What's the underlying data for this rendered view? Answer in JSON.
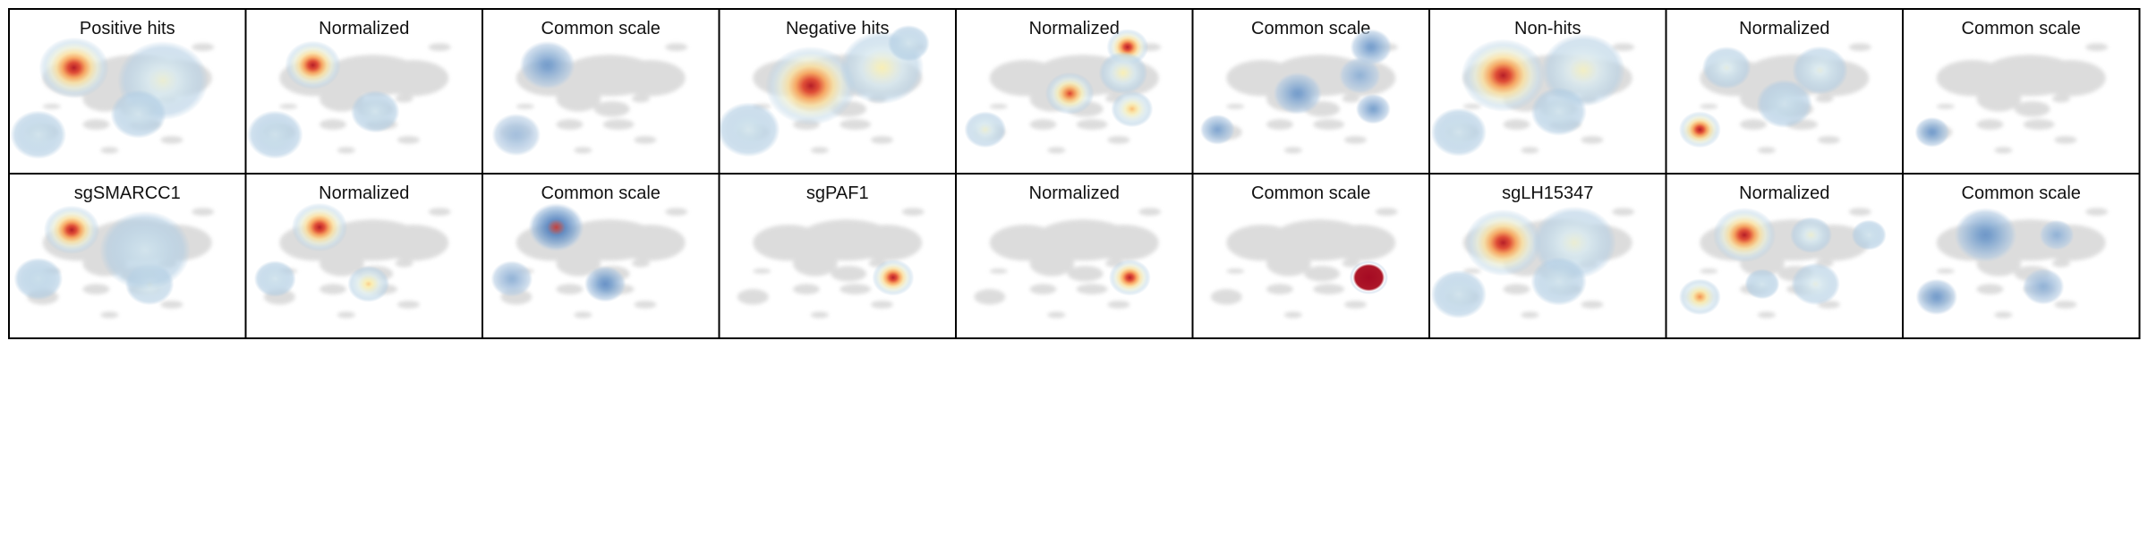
{
  "figure": {
    "rows": [
      [
        "Positive hits",
        "Normalized",
        "Common scale",
        "Negative hits",
        "Normalized",
        "Common scale",
        "Non-hits",
        "Normalized",
        "Common scale"
      ],
      [
        "sgSMARCC1",
        "Normalized",
        "Common scale",
        "sgPAF1",
        "Normalized",
        "Common scale",
        "sgLH15347",
        "Normalized",
        "Common scale"
      ]
    ]
  },
  "chart_data": {
    "type": "heatmap",
    "description_kind": "density overlays on shared embedding",
    "colormap_normalized": "RdYlBu_r",
    "colormap_common": "Blues-to-Reds",
    "background_color": "#d9d9d9",
    "panels": [
      {
        "title": "Positive hits",
        "row": 0,
        "col": 0,
        "hotspots": [
          {
            "x": 0.26,
            "y": 0.22,
            "intensity": 1.0,
            "spread": 1.0
          },
          {
            "x": 0.66,
            "y": 0.32,
            "intensity": 0.35,
            "spread": 1.3
          },
          {
            "x": 0.1,
            "y": 0.74,
            "intensity": 0.2,
            "spread": 0.8
          },
          {
            "x": 0.55,
            "y": 0.58,
            "intensity": 0.2,
            "spread": 0.8
          }
        ]
      },
      {
        "title": "Normalized",
        "row": 0,
        "col": 1,
        "hotspots": [
          {
            "x": 0.27,
            "y": 0.2,
            "intensity": 1.0,
            "spread": 0.8
          },
          {
            "x": 0.1,
            "y": 0.74,
            "intensity": 0.18,
            "spread": 0.8
          },
          {
            "x": 0.55,
            "y": 0.56,
            "intensity": 0.2,
            "spread": 0.7
          }
        ]
      },
      {
        "title": "Common scale",
        "row": 0,
        "col": 2,
        "hotspots": [
          {
            "x": 0.26,
            "y": 0.2,
            "intensity": 0.35,
            "spread": 0.8
          },
          {
            "x": 0.12,
            "y": 0.74,
            "intensity": 0.12,
            "spread": 0.7
          }
        ]
      },
      {
        "title": "Negative hits",
        "row": 0,
        "col": 3,
        "hotspots": [
          {
            "x": 0.38,
            "y": 0.36,
            "intensity": 1.0,
            "spread": 1.3
          },
          {
            "x": 0.7,
            "y": 0.22,
            "intensity": 0.45,
            "spread": 1.2
          },
          {
            "x": 0.1,
            "y": 0.7,
            "intensity": 0.22,
            "spread": 0.9
          },
          {
            "x": 0.82,
            "y": 0.03,
            "intensity": 0.2,
            "spread": 0.6
          }
        ]
      },
      {
        "title": "Normalized",
        "row": 0,
        "col": 4,
        "hotspots": [
          {
            "x": 0.74,
            "y": 0.06,
            "intensity": 1.0,
            "spread": 0.6
          },
          {
            "x": 0.48,
            "y": 0.42,
            "intensity": 0.85,
            "spread": 0.7
          },
          {
            "x": 0.72,
            "y": 0.26,
            "intensity": 0.45,
            "spread": 0.7
          },
          {
            "x": 0.76,
            "y": 0.54,
            "intensity": 0.6,
            "spread": 0.6
          },
          {
            "x": 0.1,
            "y": 0.7,
            "intensity": 0.35,
            "spread": 0.6
          }
        ]
      },
      {
        "title": "Common scale",
        "row": 0,
        "col": 5,
        "hotspots": [
          {
            "x": 0.77,
            "y": 0.06,
            "intensity": 0.35,
            "spread": 0.6
          },
          {
            "x": 0.44,
            "y": 0.42,
            "intensity": 0.35,
            "spread": 0.7
          },
          {
            "x": 0.72,
            "y": 0.28,
            "intensity": 0.2,
            "spread": 0.6
          },
          {
            "x": 0.78,
            "y": 0.54,
            "intensity": 0.32,
            "spread": 0.5
          },
          {
            "x": 0.08,
            "y": 0.7,
            "intensity": 0.28,
            "spread": 0.5
          }
        ]
      },
      {
        "title": "Non-hits",
        "row": 0,
        "col": 6,
        "hotspots": [
          {
            "x": 0.3,
            "y": 0.28,
            "intensity": 1.0,
            "spread": 1.2
          },
          {
            "x": 0.66,
            "y": 0.24,
            "intensity": 0.4,
            "spread": 1.2
          },
          {
            "x": 0.1,
            "y": 0.72,
            "intensity": 0.2,
            "spread": 0.8
          },
          {
            "x": 0.55,
            "y": 0.56,
            "intensity": 0.2,
            "spread": 0.8
          }
        ]
      },
      {
        "title": "Normalized",
        "row": 0,
        "col": 7,
        "hotspots": [
          {
            "x": 0.12,
            "y": 0.7,
            "intensity": 1.0,
            "spread": 0.6
          },
          {
            "x": 0.24,
            "y": 0.22,
            "intensity": 0.3,
            "spread": 0.7
          },
          {
            "x": 0.66,
            "y": 0.24,
            "intensity": 0.3,
            "spread": 0.8
          },
          {
            "x": 0.5,
            "y": 0.5,
            "intensity": 0.18,
            "spread": 0.8
          }
        ]
      },
      {
        "title": "Common scale",
        "row": 0,
        "col": 8,
        "hotspots": [
          {
            "x": 0.1,
            "y": 0.72,
            "intensity": 0.35,
            "spread": 0.5
          }
        ]
      },
      {
        "title": "sgSMARCC1",
        "row": 1,
        "col": 0,
        "hotspots": [
          {
            "x": 0.25,
            "y": 0.2,
            "intensity": 1.0,
            "spread": 0.8
          },
          {
            "x": 0.6,
            "y": 0.62,
            "intensity": 0.3,
            "spread": 0.7
          },
          {
            "x": 0.58,
            "y": 0.36,
            "intensity": 0.2,
            "spread": 1.3
          },
          {
            "x": 0.1,
            "y": 0.58,
            "intensity": 0.15,
            "spread": 0.7
          }
        ]
      },
      {
        "title": "Normalized",
        "row": 1,
        "col": 1,
        "hotspots": [
          {
            "x": 0.3,
            "y": 0.18,
            "intensity": 1.0,
            "spread": 0.8
          },
          {
            "x": 0.52,
            "y": 0.62,
            "intensity": 0.55,
            "spread": 0.6
          },
          {
            "x": 0.1,
            "y": 0.58,
            "intensity": 0.2,
            "spread": 0.6
          }
        ]
      },
      {
        "title": "Common scale",
        "row": 1,
        "col": 2,
        "hotspots": [
          {
            "x": 0.3,
            "y": 0.18,
            "intensity": 0.8,
            "spread": 0.8
          },
          {
            "x": 0.52,
            "y": 0.62,
            "intensity": 0.45,
            "spread": 0.6
          },
          {
            "x": 0.1,
            "y": 0.58,
            "intensity": 0.2,
            "spread": 0.6
          }
        ]
      },
      {
        "title": "sgPAF1",
        "row": 1,
        "col": 3,
        "hotspots": [
          {
            "x": 0.75,
            "y": 0.57,
            "intensity": 1.0,
            "spread": 0.6
          }
        ]
      },
      {
        "title": "Normalized",
        "row": 1,
        "col": 4,
        "hotspots": [
          {
            "x": 0.75,
            "y": 0.57,
            "intensity": 1.0,
            "spread": 0.6
          }
        ]
      },
      {
        "title": "Common scale",
        "row": 1,
        "col": 5,
        "hotspots": [
          {
            "x": 0.76,
            "y": 0.57,
            "intensity": 1.0,
            "spread": 0.55,
            "solid": true
          }
        ]
      },
      {
        "title": "sgLH15347",
        "row": 1,
        "col": 6,
        "hotspots": [
          {
            "x": 0.3,
            "y": 0.3,
            "intensity": 1.0,
            "spread": 1.1
          },
          {
            "x": 0.62,
            "y": 0.3,
            "intensity": 0.35,
            "spread": 1.2
          },
          {
            "x": 0.1,
            "y": 0.7,
            "intensity": 0.2,
            "spread": 0.8
          },
          {
            "x": 0.55,
            "y": 0.6,
            "intensity": 0.2,
            "spread": 0.8
          }
        ]
      },
      {
        "title": "Normalized",
        "row": 1,
        "col": 7,
        "hotspots": [
          {
            "x": 0.32,
            "y": 0.24,
            "intensity": 1.0,
            "spread": 0.9
          },
          {
            "x": 0.62,
            "y": 0.24,
            "intensity": 0.35,
            "spread": 0.6
          },
          {
            "x": 0.88,
            "y": 0.24,
            "intensity": 0.2,
            "spread": 0.5
          },
          {
            "x": 0.12,
            "y": 0.72,
            "intensity": 0.7,
            "spread": 0.6
          },
          {
            "x": 0.64,
            "y": 0.62,
            "intensity": 0.3,
            "spread": 0.7
          },
          {
            "x": 0.4,
            "y": 0.62,
            "intensity": 0.2,
            "spread": 0.5
          }
        ]
      },
      {
        "title": "Common scale",
        "row": 1,
        "col": 8,
        "hotspots": [
          {
            "x": 0.34,
            "y": 0.24,
            "intensity": 0.4,
            "spread": 0.9
          },
          {
            "x": 0.66,
            "y": 0.24,
            "intensity": 0.2,
            "spread": 0.5
          },
          {
            "x": 0.12,
            "y": 0.72,
            "intensity": 0.35,
            "spread": 0.6
          },
          {
            "x": 0.6,
            "y": 0.64,
            "intensity": 0.2,
            "spread": 0.6
          }
        ]
      }
    ]
  }
}
